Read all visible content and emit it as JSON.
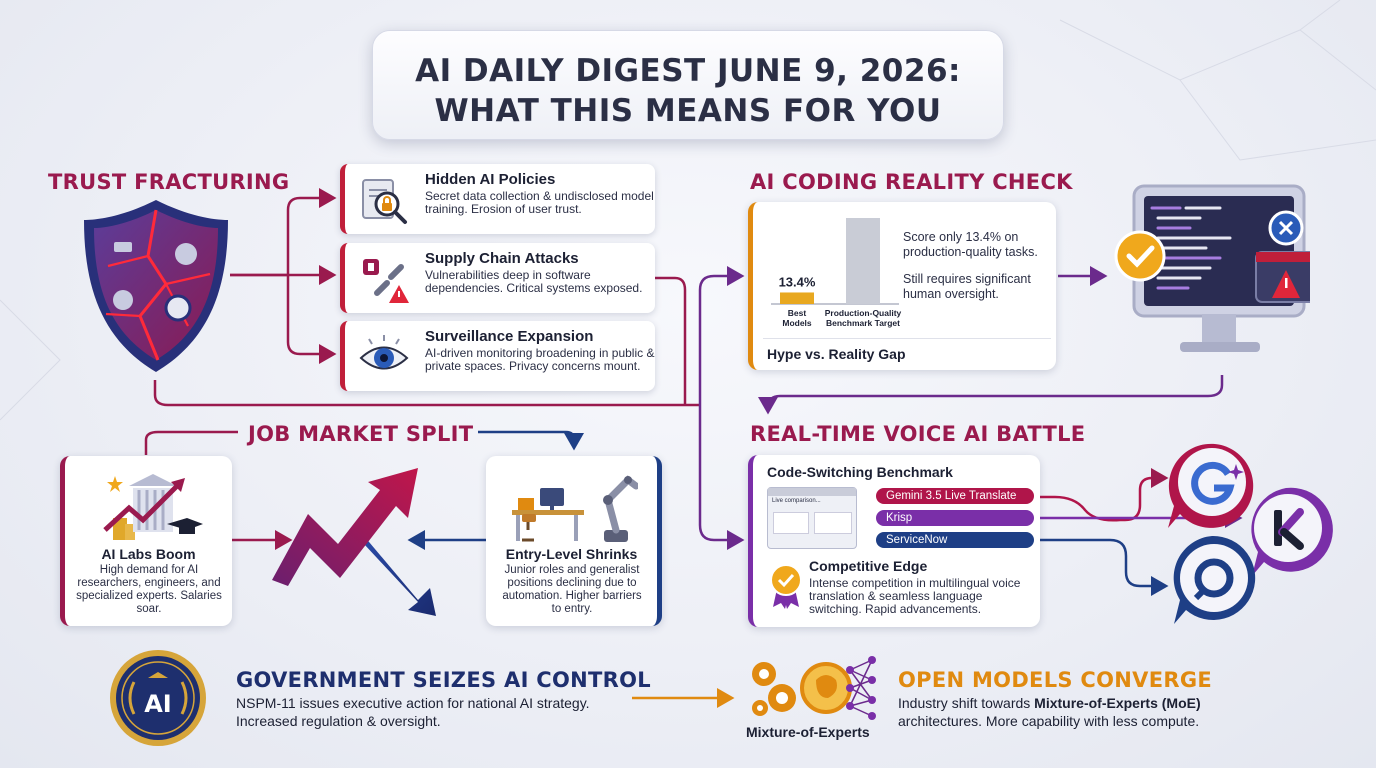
{
  "title": {
    "line1": "AI DAILY DIGEST JUNE 9, 2026:",
    "line2": "WHAT THIS MEANS FOR YOU"
  },
  "trust": {
    "heading": "TRUST FRACTURING",
    "items": [
      {
        "title": "Hidden AI Policies",
        "desc": "Secret data collection & undisclosed model training. Erosion of user trust.",
        "icon": "magnifier-lock-icon"
      },
      {
        "title": "Supply Chain Attacks",
        "desc": "Vulnerabilities deep in software dependencies. Critical systems exposed.",
        "icon": "broken-chain-icon"
      },
      {
        "title": "Surveillance Expansion",
        "desc": "AI-driven monitoring broadening in public & private spaces. Privacy concerns mount.",
        "icon": "eye-icon"
      }
    ]
  },
  "coding": {
    "heading": "AI CODING REALITY CHECK",
    "chart_data": {
      "type": "bar",
      "categories": [
        "Best Models",
        "Production-Quality Benchmark Target"
      ],
      "values": [
        13.4,
        100
      ],
      "data_labels": [
        "13.4%",
        ""
      ],
      "ylim": [
        0,
        100
      ]
    },
    "desc1": "Score only 13.4% on production-quality tasks.",
    "desc2": "Still requires significant human oversight.",
    "footer": "Hype vs. Reality Gap"
  },
  "jobs": {
    "heading": "JOB MARKET SPLIT",
    "left": {
      "title": "AI Labs Boom",
      "desc": "High demand for AI researchers, engineers, and specialized experts. Salaries soar."
    },
    "right": {
      "title": "Entry-Level Shrinks",
      "desc": "Junior roles and generalist positions declining due to automation. Higher barriers to entry."
    }
  },
  "voice": {
    "heading": "REAL-TIME VOICE AI BATTLE",
    "benchmark": "Code-Switching Benchmark",
    "screen_label": "Live comparison...",
    "competitors": [
      {
        "name": "Gemini 3.5 Live Translate",
        "color": "#b0154a"
      },
      {
        "name": "Krisp",
        "color": "#7a2fa8"
      },
      {
        "name": "ServiceNow",
        "color": "#1e3f86"
      }
    ],
    "edge_title": "Competitive Edge",
    "edge_desc": "Intense competition in multilingual voice translation & seamless language switching. Rapid advancements."
  },
  "gov": {
    "heading": "GOVERNMENT SEIZES AI CONTROL",
    "seal": "AI",
    "desc1": "NSPM-11 issues executive action for national AI strategy.",
    "desc2": "Increased regulation & oversight."
  },
  "open": {
    "heading": "OPEN MODELS CONVERGE",
    "icon_label": "Mixture-of-Experts",
    "desc_pre": "Industry shift towards ",
    "desc_bold": "Mixture-of-Experts (MoE)",
    "desc_post": "architectures. More capability with less compute."
  },
  "colors": {
    "maroon": "#9a1a4e",
    "navy": "#1e2f6e",
    "orange": "#e08a10",
    "red": "#c01f3a",
    "purple": "#7a2fa8"
  }
}
